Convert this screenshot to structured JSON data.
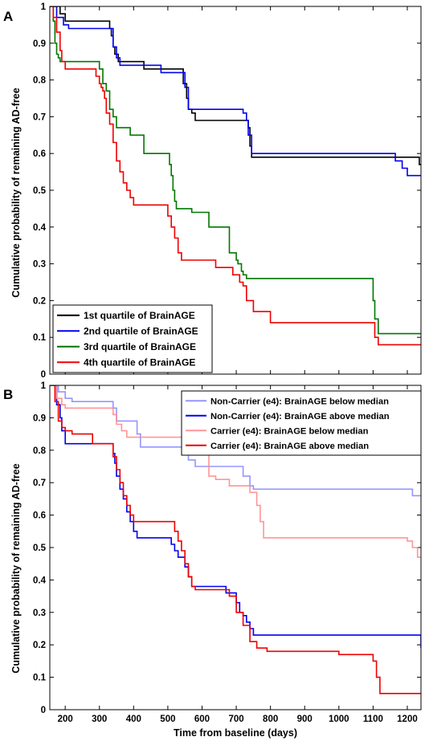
{
  "chart_data": [
    {
      "type": "line",
      "step": true,
      "panel_label": "A",
      "ylabel": "Cumulative probability of remaining AD-free",
      "xlabel": "",
      "xlim": [
        155,
        1240
      ],
      "ylim": [
        0,
        1
      ],
      "x_ticks": [
        200,
        300,
        400,
        500,
        600,
        700,
        800,
        900,
        1000,
        1100,
        1200
      ],
      "x_tick_labels_shown": false,
      "y_ticks": [
        0,
        0.1,
        0.2,
        0.3,
        0.4,
        0.5,
        0.6,
        0.7,
        0.8,
        0.9,
        1
      ],
      "y_tick_labels": [
        "0",
        "0.1",
        "0.2",
        "0.3",
        "0.4",
        "0.5",
        "0.6",
        "0.7",
        "0.8",
        "0.9",
        "1"
      ],
      "grid": false,
      "legend_position": "bottom-left",
      "series": [
        {
          "name": "1st quartile of BrainAGE",
          "color": "#000000",
          "opacity": 1,
          "x": [
            155,
            180,
            185,
            200,
            220,
            320,
            330,
            335,
            340,
            345,
            355,
            430,
            470,
            480,
            540,
            545,
            555,
            560,
            570,
            580,
            720,
            735,
            740,
            745,
            1200,
            1220,
            1235
          ],
          "y": [
            1,
            1,
            0.98,
            0.96,
            0.96,
            0.96,
            0.94,
            0.92,
            0.89,
            0.87,
            0.85,
            0.83,
            0.83,
            0.83,
            0.83,
            0.79,
            0.75,
            0.72,
            0.71,
            0.69,
            0.69,
            0.67,
            0.62,
            0.59,
            0.59,
            0.59,
            0.57
          ]
        },
        {
          "name": "2nd quartile of BrainAGE",
          "color": "#0000ee",
          "opacity": 1,
          "x": [
            155,
            175,
            195,
            210,
            320,
            340,
            350,
            360,
            480,
            550,
            560,
            720,
            730,
            735,
            745,
            1165,
            1185,
            1200
          ],
          "y": [
            1,
            0.97,
            0.95,
            0.94,
            0.94,
            0.89,
            0.86,
            0.84,
            0.82,
            0.78,
            0.72,
            0.71,
            0.69,
            0.65,
            0.6,
            0.58,
            0.56,
            0.54
          ]
        },
        {
          "name": "3rd quartile of BrainAGE",
          "color": "#007700",
          "opacity": 1,
          "x": [
            155,
            165,
            170,
            175,
            180,
            185,
            290,
            300,
            310,
            320,
            330,
            340,
            350,
            390,
            430,
            500,
            505,
            510,
            515,
            520,
            525,
            530,
            540,
            560,
            570,
            620,
            680,
            700,
            705,
            715,
            720,
            730,
            740,
            750,
            1085,
            1100,
            1105,
            1115,
            1240
          ],
          "y": [
            1,
            0.96,
            0.9,
            0.87,
            0.86,
            0.85,
            0.85,
            0.83,
            0.79,
            0.77,
            0.72,
            0.7,
            0.67,
            0.65,
            0.6,
            0.6,
            0.57,
            0.54,
            0.5,
            0.47,
            0.45,
            0.45,
            0.45,
            0.45,
            0.44,
            0.4,
            0.33,
            0.31,
            0.3,
            0.28,
            0.27,
            0.26,
            0.26,
            0.26,
            0.26,
            0.2,
            0.15,
            0.11,
            0.11
          ]
        },
        {
          "name": "4th quartile of BrainAGE",
          "color": "#ee0000",
          "opacity": 1,
          "x": [
            155,
            165,
            175,
            185,
            190,
            200,
            250,
            290,
            300,
            305,
            310,
            315,
            320,
            330,
            340,
            350,
            360,
            370,
            380,
            390,
            400,
            410,
            420,
            440,
            500,
            510,
            520,
            530,
            540,
            560,
            630,
            640,
            690,
            710,
            720,
            730,
            750,
            800,
            1095,
            1105,
            1115,
            1240
          ],
          "y": [
            1,
            0.97,
            0.93,
            0.88,
            0.85,
            0.83,
            0.83,
            0.81,
            0.79,
            0.78,
            0.77,
            0.75,
            0.71,
            0.68,
            0.63,
            0.58,
            0.55,
            0.52,
            0.5,
            0.48,
            0.46,
            0.46,
            0.46,
            0.46,
            0.43,
            0.4,
            0.37,
            0.33,
            0.31,
            0.31,
            0.31,
            0.29,
            0.27,
            0.25,
            0.24,
            0.2,
            0.17,
            0.14,
            0.14,
            0.1,
            0.08,
            0.08
          ]
        }
      ]
    },
    {
      "type": "line",
      "step": true,
      "panel_label": "B",
      "ylabel": "Cumulative probability of remaining AD-free",
      "xlabel": "Time from baseline (days)",
      "xlim": [
        155,
        1240
      ],
      "ylim": [
        0,
        1
      ],
      "x_ticks": [
        200,
        300,
        400,
        500,
        600,
        700,
        800,
        900,
        1000,
        1100,
        1200
      ],
      "x_tick_labels": [
        "200",
        "300",
        "400",
        "500",
        "600",
        "700",
        "800",
        "900",
        "1000",
        "1100",
        "1200"
      ],
      "x_tick_labels_shown": true,
      "y_ticks": [
        0,
        0.1,
        0.2,
        0.3,
        0.4,
        0.5,
        0.6,
        0.7,
        0.8,
        0.9,
        1
      ],
      "y_tick_labels": [
        "0",
        "0.1",
        "0.2",
        "0.3",
        "0.4",
        "0.5",
        "0.6",
        "0.7",
        "0.8",
        "0.9",
        "1"
      ],
      "grid": false,
      "legend_position": "top-right",
      "series": [
        {
          "name": "Non-Carrier (e4): BrainAGE below median",
          "color": "#8a8aff",
          "opacity": 0.9,
          "x": [
            155,
            180,
            200,
            220,
            300,
            340,
            350,
            410,
            420,
            470,
            530,
            545,
            560,
            580,
            720,
            740,
            750,
            1200,
            1215,
            1240
          ],
          "y": [
            1,
            0.98,
            0.96,
            0.95,
            0.95,
            0.93,
            0.89,
            0.85,
            0.81,
            0.81,
            0.81,
            0.79,
            0.77,
            0.75,
            0.72,
            0.69,
            0.68,
            0.68,
            0.66,
            0.66
          ]
        },
        {
          "name": "Non-Carrier (e4): BrainAGE above median",
          "color": "#0000ee",
          "opacity": 1,
          "x": [
            155,
            175,
            185,
            190,
            200,
            220,
            330,
            340,
            345,
            350,
            360,
            370,
            380,
            390,
            400,
            410,
            420,
            500,
            510,
            520,
            530,
            550,
            560,
            570,
            630,
            640,
            670,
            700,
            710,
            720,
            730,
            740,
            750,
            790,
            1240
          ],
          "y": [
            1,
            0.94,
            0.9,
            0.86,
            0.82,
            0.82,
            0.82,
            0.79,
            0.76,
            0.72,
            0.68,
            0.65,
            0.61,
            0.58,
            0.55,
            0.53,
            0.53,
            0.53,
            0.51,
            0.49,
            0.47,
            0.44,
            0.41,
            0.38,
            0.38,
            0.38,
            0.36,
            0.33,
            0.3,
            0.29,
            0.27,
            0.25,
            0.23,
            0.23,
            0.19
          ]
        },
        {
          "name": "Carrier (e4): BrainAGE below median",
          "color": "#ff8a8a",
          "opacity": 0.9,
          "x": [
            155,
            175,
            190,
            200,
            230,
            260,
            340,
            350,
            365,
            380,
            440,
            460,
            480,
            520,
            540,
            580,
            620,
            640,
            680,
            740,
            760,
            770,
            780,
            1180,
            1200,
            1215,
            1230
          ],
          "y": [
            1,
            0.96,
            0.94,
            0.93,
            0.93,
            0.93,
            0.91,
            0.88,
            0.86,
            0.84,
            0.84,
            0.84,
            0.84,
            0.84,
            0.84,
            0.8,
            0.72,
            0.71,
            0.69,
            0.67,
            0.63,
            0.58,
            0.53,
            0.53,
            0.52,
            0.5,
            0.47
          ]
        },
        {
          "name": "Carrier (e4): BrainAGE above median",
          "color": "#ee0000",
          "opacity": 1,
          "x": [
            155,
            170,
            180,
            190,
            200,
            220,
            240,
            280,
            330,
            340,
            350,
            360,
            370,
            380,
            390,
            400,
            410,
            420,
            430,
            500,
            520,
            530,
            540,
            550,
            560,
            570,
            580,
            620,
            650,
            680,
            700,
            720,
            740,
            760,
            790,
            960,
            1000,
            1090,
            1100,
            1110,
            1120,
            1240
          ],
          "y": [
            1,
            0.95,
            0.89,
            0.87,
            0.86,
            0.85,
            0.85,
            0.82,
            0.82,
            0.78,
            0.74,
            0.7,
            0.66,
            0.63,
            0.6,
            0.58,
            0.58,
            0.58,
            0.58,
            0.58,
            0.55,
            0.52,
            0.49,
            0.45,
            0.41,
            0.38,
            0.37,
            0.37,
            0.37,
            0.35,
            0.3,
            0.26,
            0.21,
            0.19,
            0.18,
            0.18,
            0.17,
            0.17,
            0.15,
            0.1,
            0.05,
            0.05
          ]
        }
      ]
    }
  ]
}
